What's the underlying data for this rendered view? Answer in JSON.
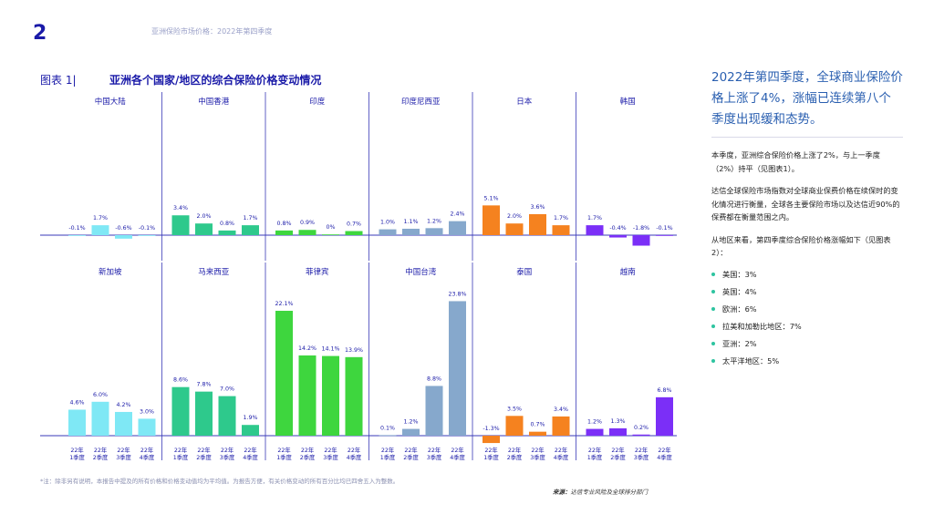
{
  "page_number": "2",
  "header": "亚洲保险市场价格：2022年第四季度",
  "figure": {
    "label": "图表 1|",
    "title": "亚洲各个国家/地区的综合保险价格变动情况"
  },
  "sidebar": {
    "headline": "2022年第四季度，全球商业保险价格上涨了4%，涨幅已连续第八个季度出现缓和态势。",
    "paragraphs": [
      "本季度，亚洲综合保险价格上涨了2%，与上一季度（2%）持平（见图表1）。",
      "达信全球保险市场指数对全球商业保费价格在续保时的变化情况进行衡量，全球各主要保险市场以及达信近90%的保费都在衡量范围之内。",
      "从地区来看，第四季度综合保险价格涨幅如下（见图表2）："
    ],
    "bullets": [
      "美国：3%",
      "英国：4%",
      "欧洲：6%",
      "拉美和加勒比地区：7%",
      "亚洲：2%",
      "太平洋地区：5%"
    ],
    "bullet_color": "#2ec4a0"
  },
  "footnote": "*注：除非另有说明，本报告中提及的所有价格和价格变动值均为平均值。为报告方便，有关价格变动的所有百分比均已四舍五入为整数。",
  "source": {
    "label": "来源：",
    "text": "达信专业风险及全球排分部门"
  },
  "chart_data": {
    "type": "bar",
    "categories": [
      [
        "22年",
        "1季度"
      ],
      [
        "22年",
        "2季度"
      ],
      [
        "22年",
        "3季度"
      ],
      [
        "22年",
        "4季度"
      ]
    ],
    "panels": [
      {
        "name": "中国大陆",
        "color": "#7fe8f5",
        "values": [
          -0.1,
          1.7,
          -0.6,
          -0.1
        ],
        "labels": [
          "-0.1%",
          "1.7%",
          "-0.6%",
          "-0.1%"
        ]
      },
      {
        "name": "中国香港",
        "color": "#2ec98c",
        "values": [
          3.4,
          2.0,
          0.8,
          1.7
        ],
        "labels": [
          "3.4%",
          "2.0%",
          "0.8%",
          "1.7%"
        ]
      },
      {
        "name": "印度",
        "color": "#3ed63e",
        "values": [
          0.8,
          0.9,
          0,
          0.7
        ],
        "labels": [
          "0.8%",
          "0.9%",
          "0%",
          "0.7%"
        ]
      },
      {
        "name": "印度尼西亚",
        "color": "#86a8cc",
        "values": [
          1.0,
          1.1,
          1.2,
          2.4
        ],
        "labels": [
          "1.0%",
          "1.1%",
          "1.2%",
          "2.4%"
        ]
      },
      {
        "name": "日本",
        "color": "#f5821f",
        "values": [
          5.1,
          2.0,
          3.6,
          1.7
        ],
        "labels": [
          "5.1%",
          "2.0%",
          "3.6%",
          "1.7%"
        ]
      },
      {
        "name": "韩国",
        "color": "#7b2ff7",
        "values": [
          1.7,
          -0.4,
          -1.8,
          -0.1
        ],
        "labels": [
          "1.7%",
          "-0.4%",
          "-1.8%",
          "-0.1%"
        ]
      },
      {
        "name": "新加坡",
        "color": "#7fe8f5",
        "values": [
          4.6,
          6.0,
          4.2,
          3.0
        ],
        "labels": [
          "4.6%",
          "6.0%",
          "4.2%",
          "3.0%"
        ]
      },
      {
        "name": "马来西亚",
        "color": "#2ec98c",
        "values": [
          8.6,
          7.8,
          7.0,
          1.9
        ],
        "labels": [
          "8.6%",
          "7.8%",
          "7.0%",
          "1.9%"
        ]
      },
      {
        "name": "菲律宾",
        "color": "#3ed63e",
        "values": [
          22.1,
          14.2,
          14.1,
          13.9
        ],
        "labels": [
          "22.1%",
          "14.2%",
          "14.1%",
          "13.9%"
        ]
      },
      {
        "name": "中国台湾",
        "color": "#86a8cc",
        "values": [
          0.1,
          1.2,
          8.8,
          23.8
        ],
        "labels": [
          "0.1%",
          "1.2%",
          "8.8%",
          "23.8%"
        ]
      },
      {
        "name": "泰国",
        "color": "#f5821f",
        "values": [
          -1.3,
          3.5,
          0.7,
          3.4
        ],
        "labels": [
          "-1.3%",
          "3.5%",
          "0.7%",
          "3.4%"
        ]
      },
      {
        "name": "越南",
        "color": "#7b2ff7",
        "values": [
          1.2,
          1.3,
          0.2,
          6.8
        ],
        "labels": [
          "1.2%",
          "1.3%",
          "0.2%",
          "6.8%"
        ]
      }
    ]
  }
}
